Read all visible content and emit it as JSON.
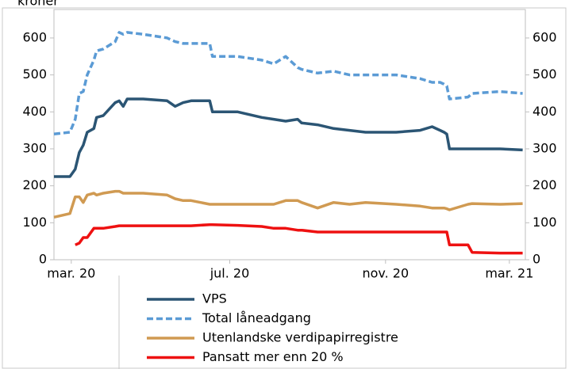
{
  "chart_data": {
    "type": "line",
    "ylabel": "kroner",
    "x": [
      0,
      12,
      16,
      19,
      22,
      25,
      30,
      32,
      37,
      46,
      49,
      52,
      55,
      67,
      85,
      91,
      97,
      103,
      117,
      119,
      138,
      156,
      165,
      174,
      183,
      186,
      198,
      210,
      222,
      234,
      257,
      275,
      284,
      290,
      293,
      295,
      297,
      311,
      314,
      335,
      352
    ],
    "xlim": [
      0,
      354
    ],
    "xticks": [
      {
        "value": 13,
        "label": "mar. 20"
      },
      {
        "value": 132,
        "label": "jul. 20"
      },
      {
        "value": 249,
        "label": "nov. 20"
      },
      {
        "value": 342,
        "label": "mar. 21"
      }
    ],
    "ylim": [
      0,
      677
    ],
    "yticks": [
      0,
      100,
      200,
      300,
      400,
      500,
      600
    ],
    "series": [
      {
        "name": "VPS",
        "color": "#2b5574",
        "dash": "solid",
        "values": [
          225,
          225,
          245,
          290,
          310,
          345,
          355,
          385,
          390,
          425,
          430,
          415,
          435,
          435,
          430,
          415,
          425,
          430,
          430,
          400,
          400,
          385,
          380,
          375,
          380,
          370,
          365,
          355,
          350,
          345,
          345,
          350,
          360,
          350,
          345,
          340,
          300,
          300,
          300,
          300,
          297
        ]
      },
      {
        "name": "Total låneadgang",
        "color": "#5b9bd5",
        "dash": "dashed",
        "values": [
          340,
          345,
          380,
          450,
          455,
          500,
          540,
          565,
          570,
          590,
          615,
          610,
          615,
          610,
          600,
          590,
          585,
          585,
          585,
          550,
          550,
          540,
          530,
          550,
          520,
          515,
          505,
          510,
          500,
          500,
          500,
          490,
          480,
          480,
          475,
          470,
          435,
          440,
          450,
          455,
          450
        ]
      },
      {
        "name": "Utenlandske verdipapirregistre",
        "color": "#d09a52",
        "dash": "solid",
        "values": [
          115,
          125,
          170,
          170,
          155,
          175,
          180,
          175,
          180,
          185,
          185,
          180,
          180,
          180,
          175,
          165,
          160,
          160,
          150,
          150,
          150,
          150,
          150,
          160,
          160,
          155,
          140,
          155,
          150,
          155,
          150,
          145,
          140,
          140,
          140,
          138,
          135,
          150,
          152,
          150,
          152
        ]
      },
      {
        "name": "Pansatt mer enn 20 %",
        "color": "#ee1111",
        "dash": "solid",
        "values": [
          null,
          null,
          40,
          45,
          60,
          60,
          85,
          85,
          85,
          90,
          92,
          92,
          92,
          92,
          92,
          92,
          92,
          92,
          95,
          95,
          93,
          90,
          85,
          85,
          80,
          80,
          75,
          75,
          75,
          75,
          75,
          75,
          75,
          75,
          75,
          75,
          40,
          40,
          20,
          18,
          18
        ]
      }
    ]
  }
}
